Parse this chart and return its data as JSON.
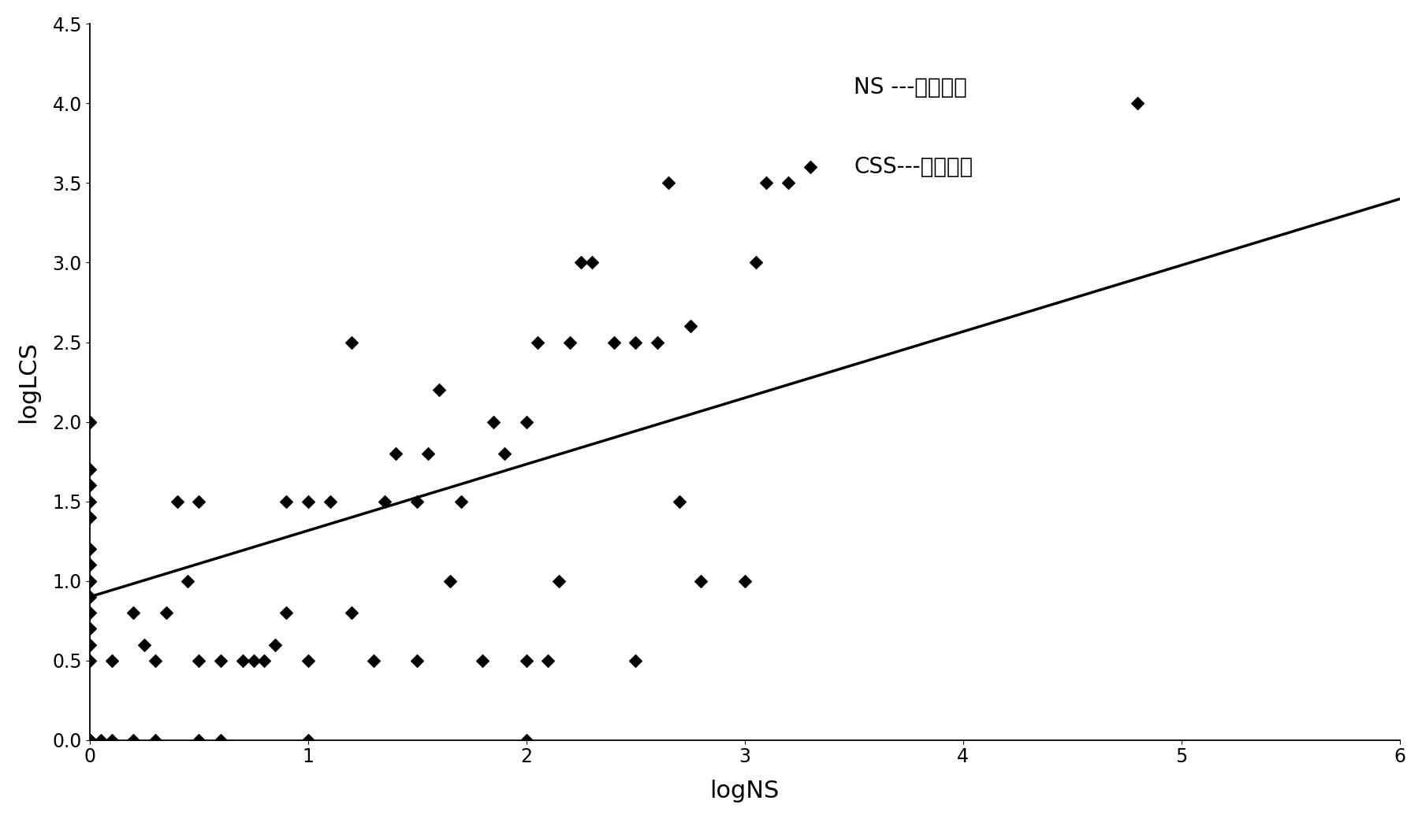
{
  "scatter_x": [
    0,
    0,
    0,
    0,
    0,
    0,
    0,
    0,
    0,
    0,
    0,
    0,
    0,
    0,
    0,
    0,
    0,
    0,
    0,
    0,
    0,
    0,
    0,
    0,
    0,
    0,
    0,
    0,
    0.05,
    0.1,
    0.1,
    0.2,
    0.2,
    0.25,
    0.3,
    0.3,
    0.35,
    0.4,
    0.45,
    0.5,
    0.5,
    0.5,
    0.6,
    0.6,
    0.7,
    0.75,
    0.8,
    0.85,
    0.9,
    0.9,
    1.0,
    1.0,
    1.0,
    1.1,
    1.2,
    1.2,
    1.3,
    1.35,
    1.4,
    1.5,
    1.5,
    1.55,
    1.6,
    1.65,
    1.7,
    1.8,
    1.85,
    1.9,
    2.0,
    2.0,
    2.0,
    2.05,
    2.1,
    2.15,
    2.2,
    2.25,
    2.3,
    2.4,
    2.5,
    2.5,
    2.6,
    2.65,
    2.7,
    2.75,
    2.8,
    3.0,
    3.05,
    3.1,
    3.2,
    3.3,
    4.8
  ],
  "scatter_y": [
    0,
    0,
    0,
    0,
    0,
    0,
    0,
    0,
    0,
    0,
    0,
    0,
    0,
    0.5,
    0.6,
    0.7,
    0.8,
    0.9,
    1.0,
    1.0,
    1.1,
    1.2,
    1.4,
    1.5,
    1.6,
    1.7,
    2.0,
    2.0,
    0.0,
    0.0,
    0.5,
    0.0,
    0.8,
    0.6,
    0.0,
    0.5,
    0.8,
    1.5,
    1.0,
    0.0,
    0.5,
    1.5,
    0.0,
    0.5,
    0.5,
    0.5,
    0.5,
    0.6,
    0.8,
    1.5,
    0.0,
    0.5,
    1.5,
    1.5,
    0.8,
    2.5,
    0.5,
    1.5,
    1.8,
    0.5,
    1.5,
    1.8,
    2.2,
    1.0,
    1.5,
    0.5,
    2.0,
    1.8,
    0.0,
    0.5,
    2.0,
    2.5,
    0.5,
    1.0,
    2.5,
    3.0,
    3.0,
    2.5,
    0.5,
    2.5,
    2.5,
    3.5,
    1.5,
    2.6,
    1.0,
    1.0,
    3.0,
    3.5,
    3.5,
    3.6,
    4.0
  ],
  "line_x": [
    0,
    6
  ],
  "line_y": [
    0.9,
    3.4
  ],
  "xlabel": "logNS",
  "ylabel": "logLCS",
  "xlim": [
    0,
    6
  ],
  "ylim": [
    0,
    4.5
  ],
  "xticks": [
    0,
    1,
    2,
    3,
    4,
    5,
    6
  ],
  "yticks": [
    0,
    0.5,
    1,
    1.5,
    2,
    2.5,
    3,
    3.5,
    4,
    4.5
  ],
  "ann_x": 3.5,
  "ann_y1": 4.1,
  "ann_y2": 3.6,
  "ann_text1": "NS ---正常血清",
  "ann_text2": "CSS---肺癌血清",
  "marker_color": "black",
  "marker_size": 64,
  "line_color": "black",
  "line_width": 2.5,
  "bg_color": "white",
  "xlabel_fontsize": 22,
  "ylabel_fontsize": 22,
  "tick_fontsize": 17,
  "ann_fontsize": 20
}
